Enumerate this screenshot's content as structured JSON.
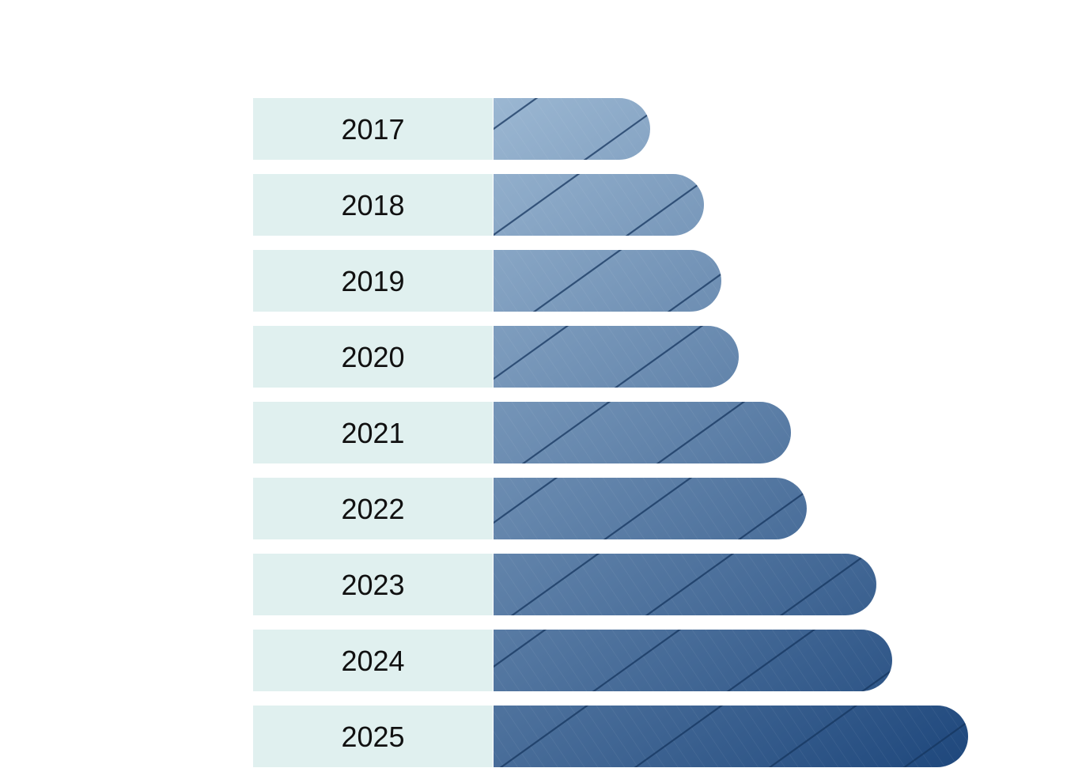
{
  "chart_data": {
    "type": "bar",
    "orientation": "horizontal",
    "categories": [
      "2017",
      "2018",
      "2019",
      "2020",
      "2021",
      "2022",
      "2023",
      "2024",
      "2025"
    ],
    "values": [
      198,
      266,
      288,
      310,
      376,
      396,
      484,
      504,
      600
    ],
    "xlim": [
      0,
      600
    ],
    "title": "",
    "xlabel": "",
    "ylabel": "",
    "grid": false,
    "legend": "none",
    "colors": {
      "label_band": "#e0f0ef",
      "bar_light": "#9bb7d2",
      "bar_dark": "#1e477c",
      "panel_line": "#16355f",
      "text": "#111111"
    }
  }
}
